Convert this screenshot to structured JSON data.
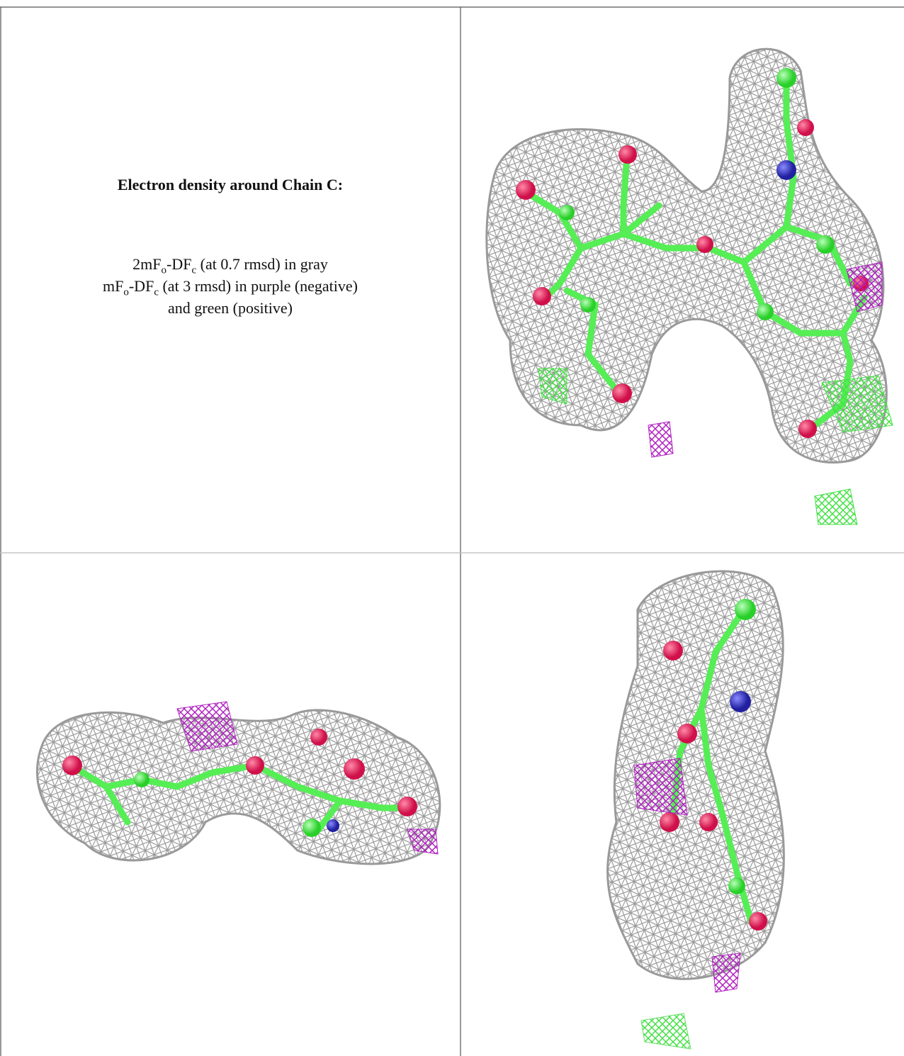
{
  "caption": {
    "title": "Electron density around Chain C:",
    "lines": [
      [
        "2mF",
        "o",
        "-DF",
        "c",
        " (at 0.7 rmsd) in gray"
      ],
      [
        "mF",
        "o",
        "-DF",
        "c",
        " (at 3 rmsd) in purple (negative)"
      ],
      [
        "and green (positive)"
      ]
    ]
  }
}
